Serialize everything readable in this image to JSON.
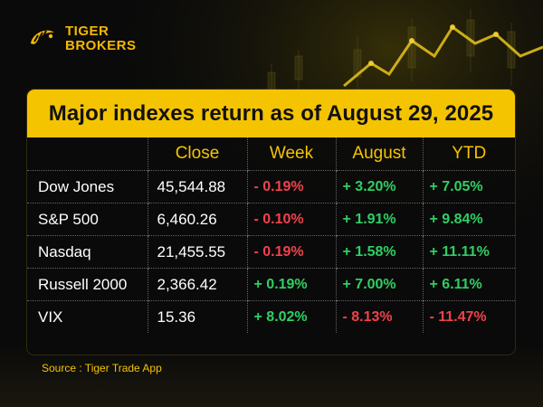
{
  "brand": {
    "line1": "TIGER",
    "line2": "BROKERS"
  },
  "title": "Major indexes return as of August 29, 2025",
  "columns": [
    "",
    "Close",
    "Week",
    "August",
    "YTD"
  ],
  "rows": [
    {
      "name": "Dow Jones",
      "close": "45,544.88",
      "week": "- 0.19%",
      "august": "+ 3.20%",
      "ytd": "+ 7.05%"
    },
    {
      "name": "S&P 500",
      "close": "6,460.26",
      "week": "- 0.10%",
      "august": "+ 1.91%",
      "ytd": "+ 9.84%"
    },
    {
      "name": "Nasdaq",
      "close": "21,455.55",
      "week": "- 0.19%",
      "august": "+ 1.58%",
      "ytd": "+ 11.11%"
    },
    {
      "name": "Russell 2000",
      "close": "2,366.42",
      "week": "+ 0.19%",
      "august": "+ 7.00%",
      "ytd": "+ 6.11%"
    },
    {
      "name": "VIX",
      "close": "15.36",
      "week": "+ 8.02%",
      "august": "- 8.13%",
      "ytd": "- 11.47%"
    }
  ],
  "source": "Source : Tiger Trade App",
  "colors": {
    "accent": "#f5c400",
    "positive": "#2fcf63",
    "negative": "#f0424b",
    "background": "#0a0a0a"
  },
  "icons": {
    "logo": "tiger-logo-icon"
  }
}
